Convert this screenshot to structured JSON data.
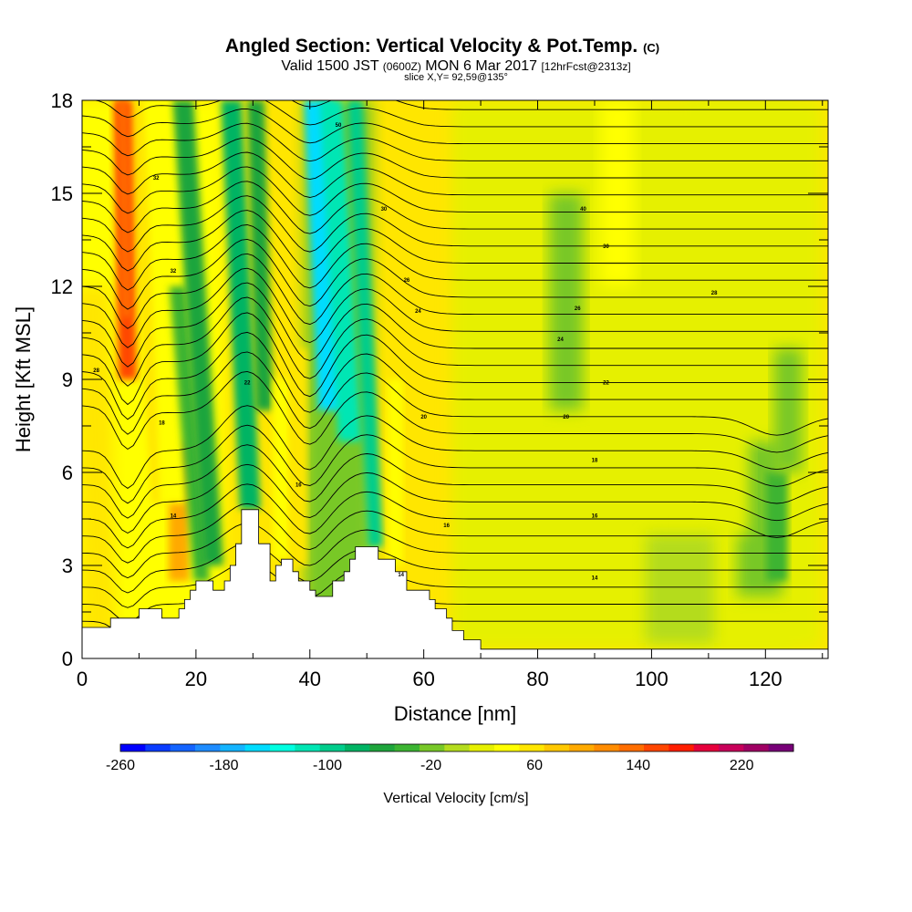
{
  "header": {
    "title_main": "Angled Section: Vertical Velocity & Pot.Temp.",
    "title_copyright": "(C)",
    "subtitle_valid": "Valid 1500 JST",
    "subtitle_utc": "(0600Z)",
    "subtitle_date": "MON 6 Mar 2017",
    "subtitle_run": "[12hrFcst@2313z]",
    "slice_info": "slice X,Y= 92,59@135°"
  },
  "chart_data": {
    "type": "heatmap",
    "title": "Angled Section: Vertical Velocity & Pot.Temp.",
    "xlabel": "Distance [nm]",
    "ylabel": "Height [Kft MSL]",
    "xlim": [
      0,
      131
    ],
    "ylim": [
      0,
      18
    ],
    "x_ticks": [
      0,
      20,
      40,
      60,
      80,
      100,
      120
    ],
    "y_ticks": [
      0,
      3,
      6,
      9,
      12,
      15,
      18
    ],
    "grid": false,
    "colorbar": {
      "label": "Vertical Velocity [cm/s]",
      "min": -260,
      "max": 260,
      "step": 20,
      "tick_values": [
        -260,
        -180,
        -100,
        -20,
        60,
        140,
        220
      ],
      "colors": [
        "#0000ff",
        "#0a3cff",
        "#1464ff",
        "#1e8cff",
        "#14b4ff",
        "#00dcff",
        "#00ffe1",
        "#00e6b4",
        "#00cd8c",
        "#00b464",
        "#1ea53c",
        "#3cb432",
        "#78c828",
        "#b4dc1e",
        "#e6f000",
        "#ffff00",
        "#ffe600",
        "#ffc800",
        "#ffaa00",
        "#ff8c00",
        "#ff6e00",
        "#ff4600",
        "#ff1e00",
        "#e6003c",
        "#c8005a",
        "#a00064",
        "#780078"
      ]
    },
    "terrain_kft": [
      [
        0,
        1.0
      ],
      [
        5,
        1.0
      ],
      [
        5,
        1.3
      ],
      [
        10,
        1.3
      ],
      [
        10,
        1.6
      ],
      [
        14,
        1.6
      ],
      [
        14,
        1.3
      ],
      [
        17,
        1.3
      ],
      [
        17,
        1.6
      ],
      [
        18,
        1.6
      ],
      [
        18,
        1.9
      ],
      [
        19,
        1.9
      ],
      [
        19,
        2.2
      ],
      [
        20,
        2.2
      ],
      [
        20,
        2.5
      ],
      [
        23,
        2.5
      ],
      [
        23,
        2.2
      ],
      [
        25,
        2.2
      ],
      [
        25,
        2.5
      ],
      [
        26,
        2.5
      ],
      [
        26,
        3.0
      ],
      [
        27,
        3.0
      ],
      [
        27,
        3.7
      ],
      [
        28,
        3.7
      ],
      [
        28,
        4.8
      ],
      [
        31,
        4.8
      ],
      [
        31,
        3.7
      ],
      [
        33,
        3.7
      ],
      [
        33,
        2.5
      ],
      [
        34,
        2.5
      ],
      [
        34,
        3.0
      ],
      [
        35,
        3.0
      ],
      [
        35,
        3.2
      ],
      [
        37,
        3.2
      ],
      [
        37,
        2.8
      ],
      [
        38,
        2.8
      ],
      [
        38,
        2.5
      ],
      [
        40,
        2.5
      ],
      [
        40,
        2.2
      ],
      [
        41,
        2.2
      ],
      [
        41,
        2.0
      ],
      [
        44,
        2.0
      ],
      [
        44,
        2.5
      ],
      [
        46,
        2.5
      ],
      [
        46,
        2.8
      ],
      [
        47,
        2.8
      ],
      [
        47,
        3.2
      ],
      [
        48,
        3.2
      ],
      [
        48,
        3.6
      ],
      [
        52,
        3.6
      ],
      [
        52,
        3.2
      ],
      [
        55,
        3.2
      ],
      [
        55,
        2.8
      ],
      [
        57,
        2.8
      ],
      [
        57,
        2.2
      ],
      [
        61,
        2.2
      ],
      [
        61,
        1.9
      ],
      [
        62,
        1.9
      ],
      [
        62,
        1.6
      ],
      [
        64,
        1.6
      ],
      [
        64,
        1.3
      ],
      [
        65,
        1.3
      ],
      [
        65,
        0.9
      ],
      [
        67,
        0.9
      ],
      [
        67,
        0.6
      ],
      [
        70,
        0.6
      ],
      [
        70,
        0.3
      ],
      [
        131,
        0.3
      ]
    ],
    "velocity_features": [
      {
        "name": "strong-updraft",
        "x_center": 8,
        "value": 160
      },
      {
        "name": "updraft-band",
        "x_center": 14,
        "value": 60
      },
      {
        "name": "low-updraft",
        "x_center": 17,
        "value": 100
      },
      {
        "name": "downdraft",
        "x_center": 23,
        "value": -60
      },
      {
        "name": "downdraft",
        "x_center": 30,
        "value": -80
      },
      {
        "name": "updraft-band",
        "x_center": 35,
        "value": 60
      },
      {
        "name": "strong-downdraft",
        "x_center": 44,
        "value": -160
      },
      {
        "name": "downdraft",
        "x_center": 51,
        "value": -100
      },
      {
        "name": "weak-downdraft",
        "x_center": 85,
        "value": -20
      },
      {
        "name": "weak-downdraft",
        "x_center": 122,
        "value": -40
      }
    ],
    "contour_label_values": [
      {
        "x": 2.5,
        "y": 9.3,
        "text": "28"
      },
      {
        "x": 13,
        "y": 15.5,
        "text": "32"
      },
      {
        "x": 16,
        "y": 12.5,
        "text": "32"
      },
      {
        "x": 45,
        "y": 17.2,
        "text": "50"
      },
      {
        "x": 88,
        "y": 14.5,
        "text": "40"
      },
      {
        "x": 92,
        "y": 13.3,
        "text": "30"
      },
      {
        "x": 111,
        "y": 11.8,
        "text": "28"
      },
      {
        "x": 87,
        "y": 11.3,
        "text": "26"
      },
      {
        "x": 84,
        "y": 10.3,
        "text": "24"
      },
      {
        "x": 92,
        "y": 8.9,
        "text": "22"
      },
      {
        "x": 85,
        "y": 7.8,
        "text": "20"
      },
      {
        "x": 90,
        "y": 6.4,
        "text": "18"
      },
      {
        "x": 90,
        "y": 4.6,
        "text": "16"
      },
      {
        "x": 90,
        "y": 2.6,
        "text": "14"
      },
      {
        "x": 14,
        "y": 7.6,
        "text": "18"
      },
      {
        "x": 16,
        "y": 4.6,
        "text": "14"
      },
      {
        "x": 38,
        "y": 5.6,
        "text": "16"
      },
      {
        "x": 60,
        "y": 7.8,
        "text": "20"
      },
      {
        "x": 59,
        "y": 11.2,
        "text": "24"
      },
      {
        "x": 57,
        "y": 12.2,
        "text": "26"
      },
      {
        "x": 53,
        "y": 14.5,
        "text": "30"
      },
      {
        "x": 64,
        "y": 4.3,
        "text": "16"
      },
      {
        "x": 56,
        "y": 2.7,
        "text": "14"
      },
      {
        "x": 29,
        "y": 8.9,
        "text": "22"
      }
    ]
  }
}
